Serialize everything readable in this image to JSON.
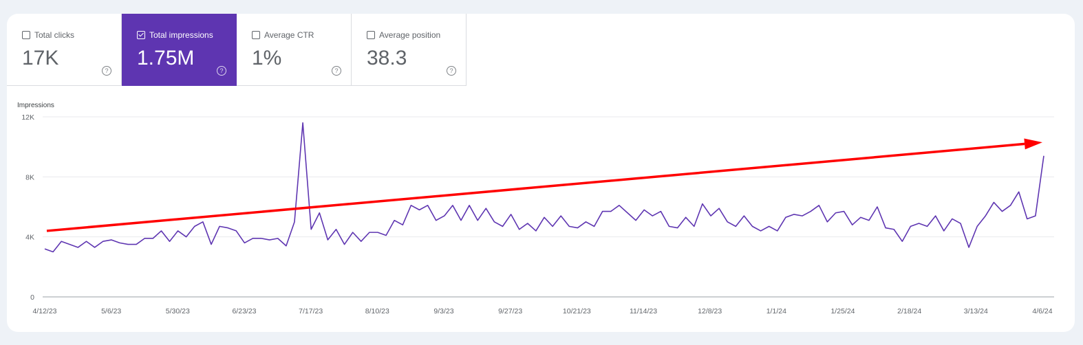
{
  "metrics": [
    {
      "label": "Total clicks",
      "value": "17K",
      "checked": false
    },
    {
      "label": "Total impressions",
      "value": "1.75M",
      "checked": true
    },
    {
      "label": "Average CTR",
      "value": "1%",
      "checked": false
    },
    {
      "label": "Average position",
      "value": "38.3",
      "checked": false
    }
  ],
  "help_icon": "question-circle-icon",
  "colors": {
    "background": "#eef2f7",
    "accent": "#5e35b1",
    "line": "#5e35b1",
    "annotation_arrow": "#ff0000"
  },
  "chart_data": {
    "type": "line",
    "ylabel": "Impressions",
    "ylim": [
      0,
      12000
    ],
    "y_ticks": [
      {
        "value": 0,
        "label": "0"
      },
      {
        "value": 4000,
        "label": "4K"
      },
      {
        "value": 8000,
        "label": "8K"
      },
      {
        "value": 12000,
        "label": "12K"
      }
    ],
    "x_ticks": [
      "4/12/23",
      "5/6/23",
      "5/30/23",
      "6/23/23",
      "7/17/23",
      "8/10/23",
      "9/3/23",
      "9/27/23",
      "10/21/23",
      "11/14/23",
      "12/8/23",
      "1/1/24",
      "1/25/24",
      "2/18/24",
      "3/13/24",
      "4/6/24"
    ],
    "xlim": [
      "4/12/23",
      "4/6/24"
    ],
    "grid": "horizontal",
    "series": [
      {
        "values": [
          3200,
          3000,
          3700,
          3500,
          3300,
          3700,
          3300,
          3700,
          3800,
          3600,
          3500,
          3500,
          3900,
          3900,
          4400,
          3700,
          4400,
          4000,
          4700,
          5000,
          3500,
          4700,
          4600,
          4400,
          3600,
          3900,
          3900,
          3800,
          3900,
          3400,
          5000,
          11600,
          4500,
          5600,
          3800,
          4500,
          3500,
          4300,
          3700,
          4300,
          4300,
          4100,
          5100,
          4800,
          6100,
          5800,
          6100,
          5100,
          5400,
          6100,
          5100,
          6100,
          5100,
          5900,
          5000,
          4700,
          5500,
          4500,
          4900,
          4400,
          5300,
          4700,
          5400,
          4700,
          4600,
          5000,
          4700,
          5700,
          5700,
          6100,
          5600,
          5100,
          5800,
          5400,
          5700,
          4700,
          4600,
          5300,
          4700,
          6200,
          5400,
          5900,
          5000,
          4700,
          5400,
          4700,
          4400,
          4700,
          4400,
          5300,
          5500,
          5400,
          5700,
          6100,
          5000,
          5600,
          5700,
          4800,
          5300,
          5100,
          6000,
          4600,
          4500,
          3700,
          4700,
          4900,
          4700,
          5400,
          4400,
          5200,
          4900,
          3300,
          4700,
          5400,
          6300,
          5700,
          6100,
          7000,
          5200,
          5400,
          9400
        ]
      }
    ],
    "annotations": [
      {
        "type": "arrow",
        "from": {
          "x": "4/12/23",
          "y": 4400
        },
        "to": {
          "x": "4/6/24",
          "y": 10300
        }
      }
    ]
  }
}
